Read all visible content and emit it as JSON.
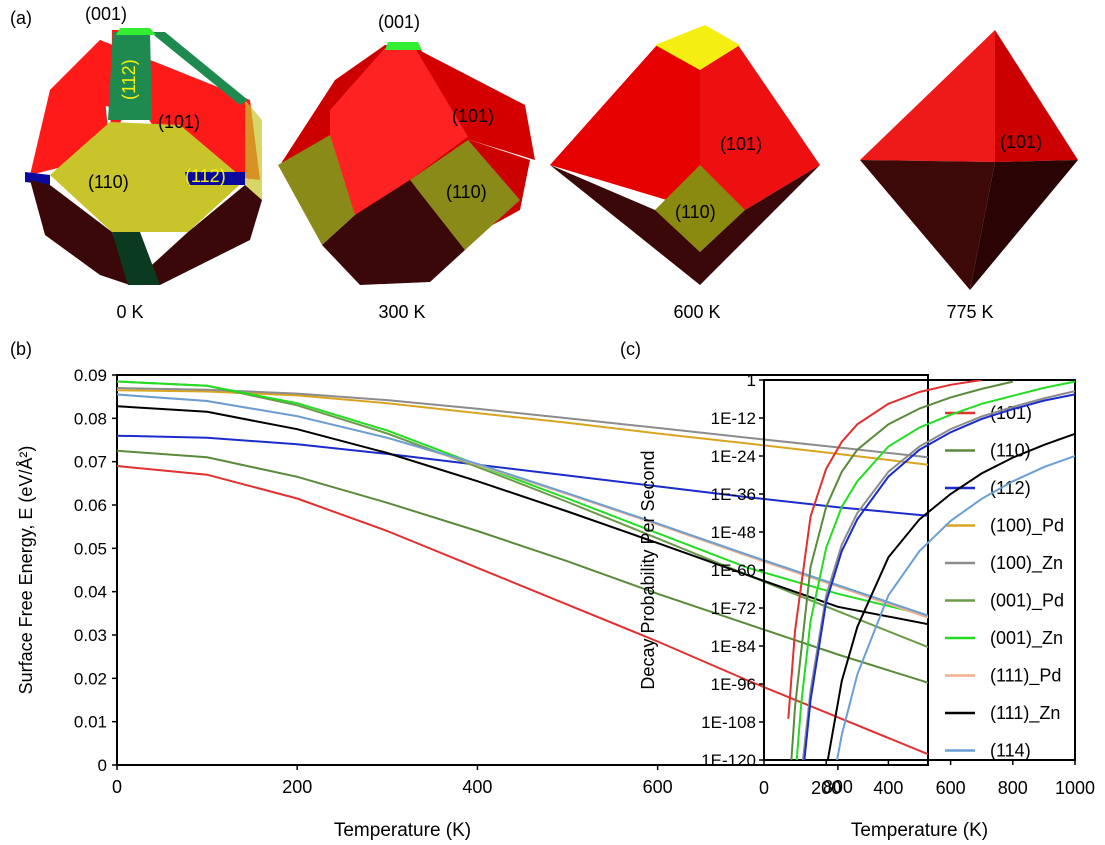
{
  "panels": {
    "a": "(a)",
    "b": "(b)",
    "c": "(c)"
  },
  "crystals": [
    {
      "temperature": "0 K",
      "facets": [
        "(001)",
        "(112)",
        "(101)",
        "(110)",
        "(112)"
      ],
      "colors": [
        "#ff1a1a",
        "#c8c42a",
        "#1e8a50",
        "#0a0aa0",
        "#3a0808",
        "#33ee33"
      ]
    },
    {
      "temperature": "300 K",
      "facets": [
        "(001)",
        "(101)",
        "(110)"
      ],
      "colors": [
        "#ff2222",
        "#8a8a18",
        "#3a0808",
        "#33ee33"
      ]
    },
    {
      "temperature": "600 K",
      "facets": [
        "(101)",
        "(110)"
      ],
      "colors": [
        "#e60000",
        "#8a8a10",
        "#3a0808",
        "#f5ee12"
      ]
    },
    {
      "temperature": "775 K",
      "facets": [
        "(101)"
      ],
      "colors": [
        "#ee1a1a",
        "#cc0000",
        "#3c0808"
      ]
    }
  ],
  "chart_data": [
    {
      "type": "line",
      "title": "",
      "xlabel": "Temperature (K)",
      "ylabel": "Surface Free Energy, E (eV/Å²)",
      "xlim": [
        0,
        900
      ],
      "ylim": [
        0,
        0.09
      ],
      "x_ticks": [
        "0",
        "200",
        "400",
        "600",
        "800"
      ],
      "y_ticks": [
        "0",
        "0.01",
        "0.02",
        "0.03",
        "0.04",
        "0.05",
        "0.06",
        "0.07",
        "0.08",
        "0.09"
      ],
      "grid": false,
      "legend_position": "right",
      "x": [
        0,
        100,
        200,
        300,
        400,
        500,
        600,
        700,
        800,
        900
      ],
      "series": [
        {
          "name": "(101)",
          "color": "#e03030",
          "values": [
            0.069,
            0.067,
            0.0615,
            0.054,
            0.0455,
            0.037,
            0.0285,
            0.0195,
            0.011,
            0.0025
          ]
        },
        {
          "name": "(110)",
          "color": "#5a8a3c",
          "values": [
            0.0725,
            0.071,
            0.0665,
            0.0605,
            0.054,
            0.047,
            0.0395,
            0.0325,
            0.0255,
            0.019
          ]
        },
        {
          "name": "(112)",
          "color": "#1a2ccc",
          "values": [
            0.076,
            0.0755,
            0.074,
            0.0718,
            0.0693,
            0.0668,
            0.0643,
            0.0618,
            0.0595,
            0.0575
          ]
        },
        {
          "name": "(100)_Pd",
          "color": "#d9a520",
          "values": [
            0.0865,
            0.0862,
            0.0853,
            0.0835,
            0.0812,
            0.079,
            0.0765,
            0.0742,
            0.0718,
            0.0693
          ]
        },
        {
          "name": "(100)_Zn",
          "color": "#8c8c8c",
          "values": [
            0.087,
            0.0866,
            0.0857,
            0.0842,
            0.0822,
            0.08,
            0.0778,
            0.0755,
            0.0733,
            0.071
          ]
        },
        {
          "name": "(001)_Pd",
          "color": "#6b9a48",
          "values": [
            0.0885,
            0.0875,
            0.083,
            0.0765,
            0.0688,
            0.0607,
            0.0523,
            0.0438,
            0.0355,
            0.0272
          ]
        },
        {
          "name": "(001)_Zn",
          "color": "#22dd22",
          "values": [
            0.0885,
            0.0875,
            0.0835,
            0.0772,
            0.0693,
            0.0615,
            0.0535,
            0.0455,
            0.0395,
            0.0345
          ]
        },
        {
          "name": "(111)_Pd",
          "color": "#f0b090",
          "values": [
            0.0855,
            0.084,
            0.0805,
            0.0755,
            0.0693,
            0.0625,
            0.0555,
            0.0482,
            0.0412,
            0.034
          ]
        },
        {
          "name": "(111)_Zn",
          "color": "#000000",
          "values": [
            0.0828,
            0.0815,
            0.0775,
            0.072,
            0.0655,
            0.0585,
            0.0512,
            0.0438,
            0.0365,
            0.0325
          ]
        },
        {
          "name": "(114)",
          "color": "#6a9fd4",
          "values": [
            0.0855,
            0.084,
            0.0805,
            0.0755,
            0.0695,
            0.0627,
            0.0557,
            0.0485,
            0.0415,
            0.0345
          ]
        }
      ]
    },
    {
      "type": "line",
      "title": "",
      "xlabel": "Temperature (K)",
      "ylabel": "Decay Probability Per Second",
      "xlim": [
        0,
        1000
      ],
      "ylim": [
        -120,
        0
      ],
      "log_scale_y": true,
      "x_ticks": [
        "0",
        "200",
        "400",
        "600",
        "800",
        "1000"
      ],
      "y_ticks": [
        "1",
        "1E-12",
        "1E-24",
        "1E-36",
        "1E-48",
        "1E-60",
        "1E-72",
        "1E-84",
        "1E-96",
        "1E-108",
        "1E-120"
      ],
      "grid": false,
      "series_note": "values are log10 of decay probability",
      "series": [
        {
          "name": "(101)",
          "color": "#e03030",
          "x": [
            78,
            100,
            150,
            200,
            250,
            300,
            400,
            500,
            600,
            700
          ],
          "values": [
            -107,
            -79,
            -43,
            -28,
            -19.5,
            -14,
            -7.5,
            -3.8,
            -1.5,
            0
          ]
        },
        {
          "name": "(110)",
          "color": "#5a8a3c",
          "x": [
            88,
            100,
            150,
            200,
            250,
            300,
            400,
            500,
            600,
            700,
            800
          ],
          "values": [
            -120,
            -103,
            -59,
            -40,
            -29,
            -22,
            -14,
            -9,
            -5.5,
            -2.8,
            -0.5
          ]
        },
        {
          "name": "(001)_Zn",
          "color": "#22dd22",
          "x": [
            105,
            120,
            150,
            200,
            250,
            300,
            400,
            500,
            600,
            700,
            800,
            900,
            1000
          ],
          "values": [
            -120,
            -102,
            -76,
            -53,
            -40,
            -32,
            -21,
            -15,
            -11,
            -7.5,
            -5,
            -2.5,
            -0.5
          ]
        },
        {
          "name": "(100)_Zn",
          "color": "#8c8c8c",
          "x": [
            125,
            150,
            200,
            250,
            300,
            400,
            500,
            600,
            700,
            800,
            900,
            1000
          ],
          "values": [
            -120,
            -98,
            -68,
            -52,
            -42,
            -29,
            -21,
            -15.5,
            -11.5,
            -8.5,
            -5.8,
            -3.5
          ]
        },
        {
          "name": "(112)",
          "color": "#1a2ccc",
          "x": [
            130,
            150,
            200,
            250,
            300,
            400,
            500,
            600,
            700,
            800,
            900,
            1000
          ],
          "values": [
            -120,
            -101,
            -70,
            -54,
            -44,
            -30.5,
            -22,
            -16.5,
            -12.3,
            -9.2,
            -6.5,
            -4.5
          ]
        },
        {
          "name": "(111)_Zn",
          "color": "#000000",
          "x": [
            205,
            250,
            300,
            400,
            500,
            600,
            700,
            800,
            900,
            1000
          ],
          "values": [
            -120,
            -95,
            -78,
            -56,
            -44,
            -36,
            -29.5,
            -24.5,
            -20.5,
            -17
          ]
        },
        {
          "name": "(114)",
          "color": "#6a9fd4",
          "x": [
            235,
            250,
            300,
            400,
            500,
            600,
            700,
            800,
            900,
            1000
          ],
          "values": [
            -120,
            -112,
            -93,
            -68,
            -54,
            -44.5,
            -37.5,
            -32,
            -27.5,
            -24
          ]
        }
      ]
    }
  ]
}
